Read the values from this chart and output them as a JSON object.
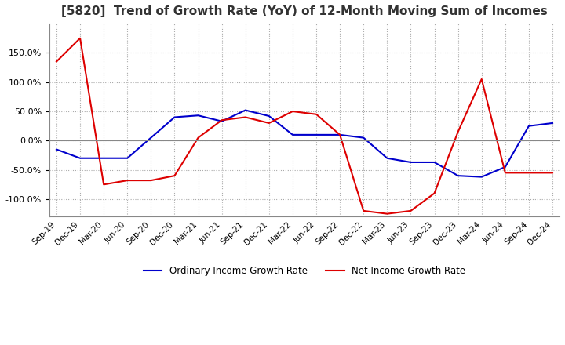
{
  "title": "[5820]  Trend of Growth Rate (YoY) of 12-Month Moving Sum of Incomes",
  "title_fontsize": 11,
  "ylim": [
    -130,
    200
  ],
  "yticks": [
    -100,
    -50,
    0,
    50,
    100,
    150
  ],
  "background_color": "#ffffff",
  "plot_bg_color": "#ffffff",
  "grid_color": "#aaaaaa",
  "ordinary_color": "#0000cc",
  "net_color": "#dd0000",
  "legend_labels": [
    "Ordinary Income Growth Rate",
    "Net Income Growth Rate"
  ],
  "x_labels": [
    "Sep-19",
    "Dec-19",
    "Mar-20",
    "Jun-20",
    "Sep-20",
    "Dec-20",
    "Mar-21",
    "Jun-21",
    "Sep-21",
    "Dec-21",
    "Mar-22",
    "Jun-22",
    "Sep-22",
    "Dec-22",
    "Mar-23",
    "Jun-23",
    "Sep-23",
    "Dec-23",
    "Mar-24",
    "Jun-24",
    "Sep-24",
    "Dec-24"
  ],
  "ordinary_income_growth": [
    -15,
    -30,
    -30,
    -30,
    5,
    40,
    43,
    33,
    52,
    42,
    10,
    10,
    10,
    5,
    -30,
    -37,
    -37,
    -60,
    -62,
    -45,
    25,
    30
  ],
  "net_income_growth": [
    135,
    175,
    -75,
    -68,
    -68,
    -60,
    5,
    35,
    40,
    30,
    50,
    45,
    10,
    -120,
    -125,
    -120,
    -90,
    15,
    105,
    -55,
    -55,
    -55
  ]
}
